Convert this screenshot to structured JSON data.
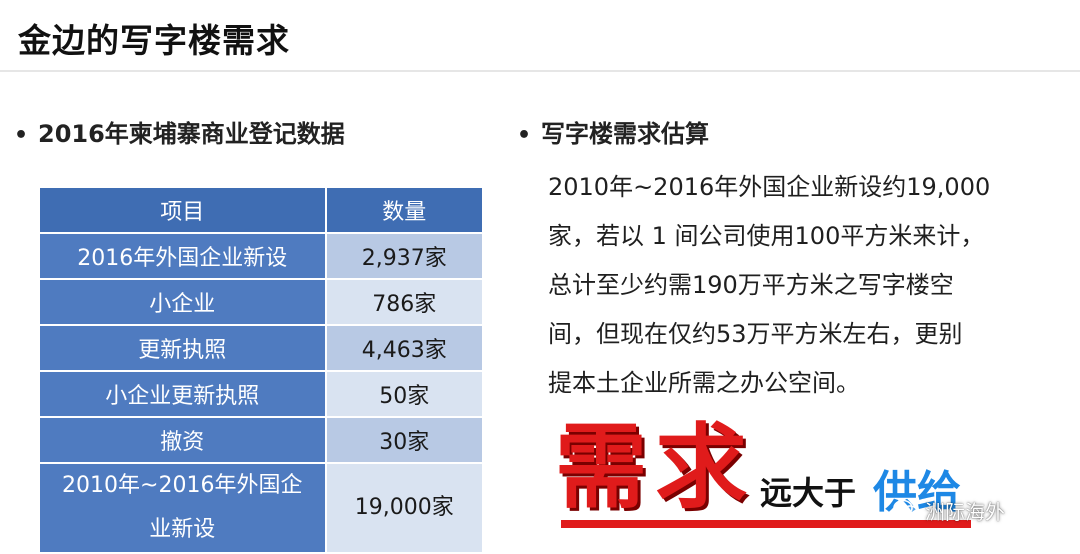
{
  "slide": {
    "title": "金边的写字楼需求"
  },
  "left": {
    "heading": "2016年柬埔寨商业登记数据",
    "table": {
      "headers": [
        "项目",
        "数量"
      ],
      "rows": [
        {
          "item": "2016年外国企业新设",
          "qty": "2,937家"
        },
        {
          "item": "小企业",
          "qty": "786家"
        },
        {
          "item": "更新执照",
          "qty": "4,463家"
        },
        {
          "item": "小企业更新执照",
          "qty": "50家"
        },
        {
          "item": "撤资",
          "qty": "30家"
        },
        {
          "item_line1": "2010年~2016年外国企",
          "item_line2": "业新设",
          "qty": "19,000家"
        }
      ]
    }
  },
  "right": {
    "heading": "写字楼需求估算",
    "paragraph_lines": [
      "2010年~2016年外国企业新设约19,000",
      "家，若以 1 间公司使用100平方米来计，",
      "总计至少约需190万平方米之写字楼空",
      "间，但现在仅约53万平方米左右，更别",
      "提本土企业所需之办公空间。"
    ]
  },
  "slogan": {
    "char1": "需",
    "char2": "求",
    "middle": "远大于",
    "end": "供给",
    "colors": {
      "red": "#e01b1b",
      "blue": "#1e88e5"
    }
  },
  "watermark": {
    "icon": "wechat-icon",
    "text": "洲际海外"
  },
  "colors": {
    "header_blue": "#3f6db3",
    "item_blue": "#4f7bc0",
    "qty_dark": "#b8c9e4",
    "qty_light": "#d9e3f1"
  }
}
